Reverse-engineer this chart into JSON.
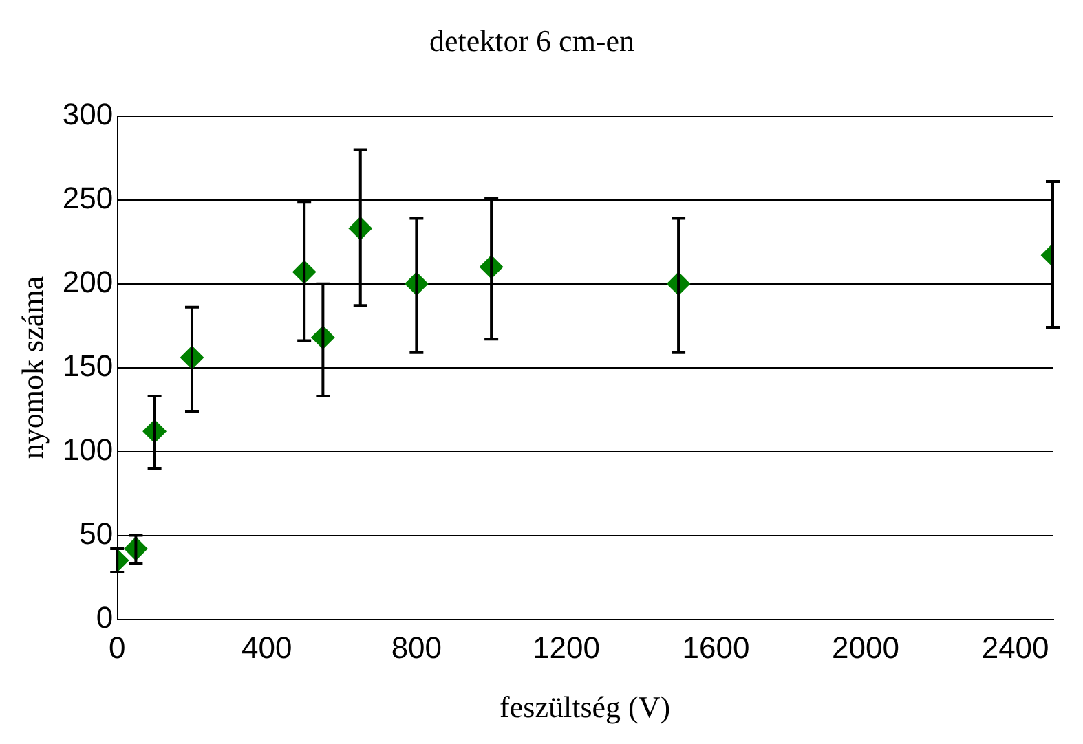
{
  "chart_data": {
    "type": "scatter",
    "title": "detektor 6 cm-en",
    "xlabel": "feszültség (V)",
    "ylabel": "nyomok száma",
    "x": [
      0,
      50,
      100,
      200,
      500,
      550,
      650,
      800,
      1000,
      1500,
      2500
    ],
    "values": [
      35,
      42,
      112,
      156,
      207,
      168,
      233,
      200,
      210,
      200,
      217
    ],
    "errors": [
      [
        28,
        42
      ],
      [
        33,
        50
      ],
      [
        90,
        133
      ],
      [
        124,
        186
      ],
      [
        166,
        249
      ],
      [
        133,
        200
      ],
      [
        187,
        280
      ],
      [
        159,
        239
      ],
      [
        167,
        251
      ],
      [
        159,
        239
      ],
      [
        174,
        261
      ]
    ],
    "color": "#008000",
    "marker": "diamond",
    "xlim": [
      0,
      2500
    ],
    "xticks": [
      0,
      400,
      800,
      1200,
      1600,
      2000,
      2400
    ],
    "ylim": [
      0,
      300
    ],
    "yticks": [
      0,
      50,
      100,
      150,
      200,
      250,
      300
    ],
    "grid": "y",
    "legend": false
  }
}
